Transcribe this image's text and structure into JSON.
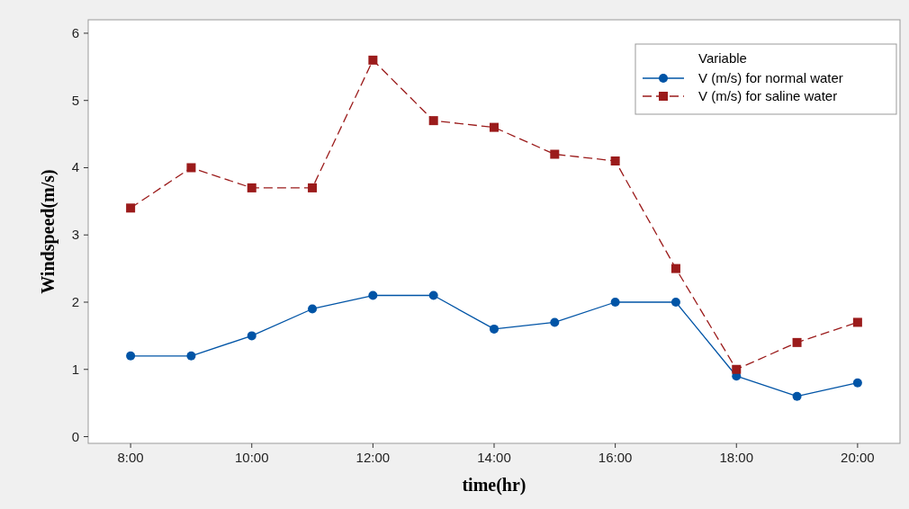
{
  "chart_data": {
    "type": "line",
    "xlabel": "time(hr)",
    "ylabel": "Windspeed(m/s)",
    "legend_title": "Variable",
    "legend": "top right",
    "grid": false,
    "x": [
      8,
      9,
      10,
      11,
      12,
      13,
      14,
      15,
      16,
      17,
      18,
      19,
      20
    ],
    "xlim": [
      7.3,
      20.7
    ],
    "xticks": [
      {
        "value": 8,
        "label": "8:00"
      },
      {
        "value": 10,
        "label": "10:00"
      },
      {
        "value": 12,
        "label": "12:00"
      },
      {
        "value": 14,
        "label": "14:00"
      },
      {
        "value": 16,
        "label": "16:00"
      },
      {
        "value": 18,
        "label": "18:00"
      },
      {
        "value": 20,
        "label": "20:00"
      }
    ],
    "ylim": [
      -0.1,
      6.2
    ],
    "yticks": [
      0,
      1,
      2,
      3,
      4,
      5,
      6
    ],
    "series": [
      {
        "name": "V (m/s) for normal water",
        "color": "#0054a6",
        "marker": "circle",
        "line_style": "solid",
        "values": [
          1.2,
          1.2,
          1.5,
          1.9,
          2.1,
          2.1,
          1.6,
          1.7,
          2.0,
          2.0,
          0.9,
          0.6,
          0.8
        ]
      },
      {
        "name": "V (m/s) for saline water",
        "color": "#9b1b1b",
        "marker": "square",
        "line_style": "dashed",
        "values": [
          3.4,
          4.0,
          3.7,
          3.7,
          5.6,
          4.7,
          4.6,
          4.2,
          4.1,
          2.5,
          1.0,
          1.4,
          1.7
        ]
      }
    ]
  }
}
